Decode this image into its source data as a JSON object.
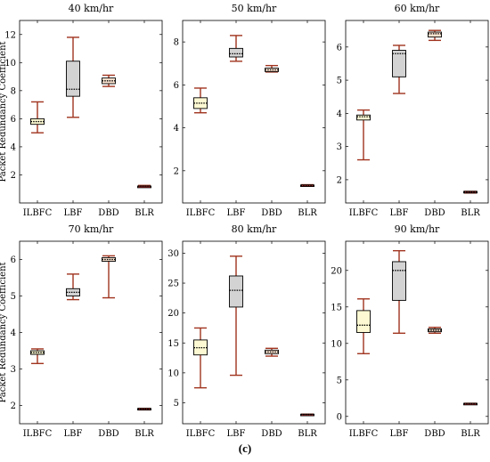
{
  "figure": {
    "caption": "(c)"
  },
  "style": {
    "whisker_color": "#a0341f",
    "median_color": "#000000",
    "mean_dot_color": "#000000",
    "frame_color": "#000000"
  },
  "chart_data": [
    {
      "type": "box",
      "title": "40 km/hr",
      "ylabel": "Packet Redundancy Coefficient",
      "categories": [
        "ILBFC",
        "LBF",
        "DBD",
        "BLR"
      ],
      "ylim": [
        0,
        13
      ],
      "yticks": [
        2,
        4,
        6,
        8,
        10,
        12
      ],
      "boxes": [
        {
          "min": 5.0,
          "q1": 5.6,
          "median": 5.8,
          "q3": 6.0,
          "max": 7.2,
          "fill": "#fdf9d2"
        },
        {
          "min": 6.1,
          "q1": 7.6,
          "median": 8.1,
          "q3": 10.1,
          "max": 11.8,
          "fill": "#d3d3d3"
        },
        {
          "min": 8.3,
          "q1": 8.5,
          "median": 8.7,
          "q3": 8.9,
          "max": 9.1,
          "fill": "#fbe3cf"
        },
        {
          "min": 1.15,
          "q1": 1.15,
          "median": 1.2,
          "q3": 1.2,
          "max": 1.25,
          "fill": "#cc3333"
        }
      ]
    },
    {
      "type": "box",
      "title": "50 km/hr",
      "ylabel": "",
      "categories": [
        "ILBFC",
        "LBF",
        "DBD",
        "BLR"
      ],
      "ylim": [
        0.5,
        9
      ],
      "yticks": [
        2,
        4,
        6,
        8
      ],
      "boxes": [
        {
          "min": 4.7,
          "q1": 4.9,
          "median": 5.15,
          "q3": 5.4,
          "max": 5.85,
          "fill": "#fdf9d2"
        },
        {
          "min": 7.1,
          "q1": 7.3,
          "median": 7.45,
          "q3": 7.7,
          "max": 8.3,
          "fill": "#d3d3d3"
        },
        {
          "min": 6.6,
          "q1": 6.62,
          "median": 6.7,
          "q3": 6.78,
          "max": 6.9,
          "fill": "#fbe3cf"
        },
        {
          "min": 1.3,
          "q1": 1.3,
          "median": 1.32,
          "q3": 1.34,
          "max": 1.35,
          "fill": "#cc3333"
        }
      ]
    },
    {
      "type": "box",
      "title": "60 km/hr",
      "ylabel": "",
      "categories": [
        "ILBFC",
        "LBF",
        "DBD",
        "BLR"
      ],
      "ylim": [
        1.3,
        6.8
      ],
      "yticks": [
        2,
        3,
        4,
        5,
        6
      ],
      "boxes": [
        {
          "min": 2.6,
          "q1": 3.8,
          "median": 3.9,
          "q3": 3.95,
          "max": 4.1,
          "fill": "#fdf9d2"
        },
        {
          "min": 4.6,
          "q1": 5.1,
          "median": 5.8,
          "q3": 5.9,
          "max": 6.05,
          "fill": "#d3d3d3"
        },
        {
          "min": 6.2,
          "q1": 6.3,
          "median": 6.4,
          "q3": 6.45,
          "max": 6.5,
          "fill": "#fbe3cf"
        },
        {
          "min": 1.6,
          "q1": 1.6,
          "median": 1.63,
          "q3": 1.65,
          "max": 1.65,
          "fill": "#cc3333"
        }
      ]
    },
    {
      "type": "box",
      "title": "70 km/hr",
      "ylabel": "Packet Redundancy Coefficient",
      "categories": [
        "ILBFC",
        "LBF",
        "DBD",
        "BLR"
      ],
      "ylim": [
        1.5,
        6.5
      ],
      "yticks": [
        2,
        3,
        4,
        5,
        6
      ],
      "boxes": [
        {
          "min": 3.15,
          "q1": 3.4,
          "median": 3.45,
          "q3": 3.5,
          "max": 3.55,
          "fill": "#fdf9d2"
        },
        {
          "min": 4.9,
          "q1": 5.0,
          "median": 5.1,
          "q3": 5.2,
          "max": 5.6,
          "fill": "#d3d3d3"
        },
        {
          "min": 4.95,
          "q1": 5.95,
          "median": 6.0,
          "q3": 6.05,
          "max": 6.1,
          "fill": "#fbe3cf"
        },
        {
          "min": 1.88,
          "q1": 1.88,
          "median": 1.9,
          "q3": 1.92,
          "max": 1.92,
          "fill": "#cc3333"
        }
      ]
    },
    {
      "type": "box",
      "title": "80 km/hr",
      "ylabel": "",
      "categories": [
        "ILBFC",
        "LBF",
        "DBD",
        "BLR"
      ],
      "ylim": [
        1.5,
        32
      ],
      "yticks": [
        5,
        10,
        15,
        20,
        25,
        30
      ],
      "boxes": [
        {
          "min": 7.5,
          "q1": 13.0,
          "median": 14.2,
          "q3": 15.5,
          "max": 17.5,
          "fill": "#fdf9d2"
        },
        {
          "min": 9.6,
          "q1": 21.0,
          "median": 23.8,
          "q3": 26.2,
          "max": 29.5,
          "fill": "#d3d3d3"
        },
        {
          "min": 12.8,
          "q1": 13.2,
          "median": 13.5,
          "q3": 13.8,
          "max": 14.1,
          "fill": "#fbe3cf"
        },
        {
          "min": 3.0,
          "q1": 3.0,
          "median": 3.05,
          "q3": 3.1,
          "max": 3.1,
          "fill": "#cc3333"
        }
      ]
    },
    {
      "type": "box",
      "title": "90 km/hr",
      "ylabel": "",
      "categories": [
        "ILBFC",
        "LBF",
        "DBD",
        "BLR"
      ],
      "ylim": [
        -1,
        24
      ],
      "yticks": [
        0,
        5,
        10,
        15,
        20
      ],
      "boxes": [
        {
          "min": 8.6,
          "q1": 11.5,
          "median": 12.5,
          "q3": 14.5,
          "max": 16.1,
          "fill": "#fdf9d2"
        },
        {
          "min": 11.4,
          "q1": 15.9,
          "median": 20.0,
          "q3": 21.2,
          "max": 22.7,
          "fill": "#d3d3d3"
        },
        {
          "min": 11.4,
          "q1": 11.6,
          "median": 11.8,
          "q3": 12.0,
          "max": 12.2,
          "fill": "#fbe3cf"
        },
        {
          "min": 1.7,
          "q1": 1.7,
          "median": 1.75,
          "q3": 1.8,
          "max": 1.8,
          "fill": "#cc3333"
        }
      ]
    }
  ]
}
